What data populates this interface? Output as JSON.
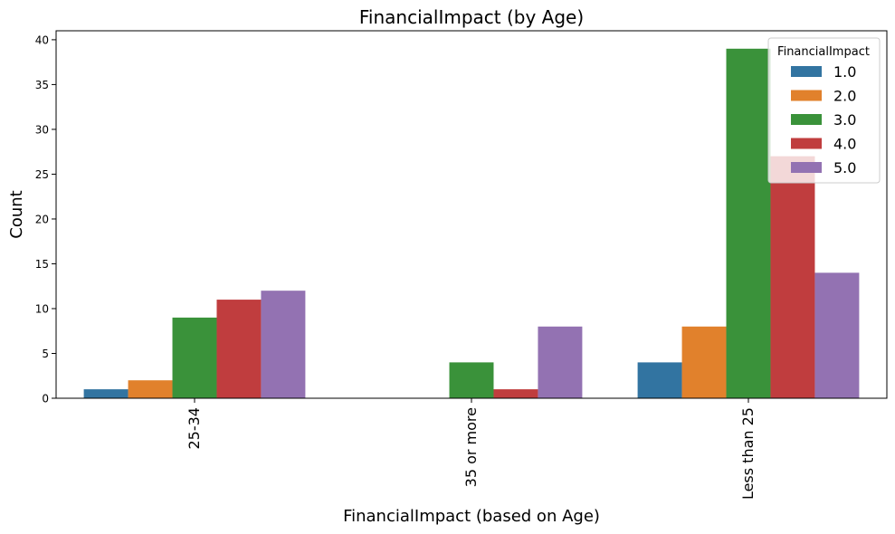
{
  "chart_data": {
    "type": "bar",
    "title": "FinancialImpact (by Age)",
    "xlabel": "FinancialImpact (based on Age)",
    "ylabel": "Count",
    "categories": [
      "25-34",
      "35 or more",
      "Less than 25"
    ],
    "ylim": [
      0,
      41
    ],
    "yticks": [
      0,
      5,
      10,
      15,
      20,
      25,
      30,
      35,
      40
    ],
    "grid": false,
    "legend": {
      "title": "FinancialImpact",
      "placement": "top-right"
    },
    "series": [
      {
        "name": "1.0",
        "color": "#3274a1",
        "values": [
          1,
          0,
          4
        ]
      },
      {
        "name": "2.0",
        "color": "#e1812c",
        "values": [
          2,
          0,
          8
        ]
      },
      {
        "name": "3.0",
        "color": "#3a923a",
        "values": [
          9,
          4,
          39
        ]
      },
      {
        "name": "4.0",
        "color": "#c03d3e",
        "values": [
          11,
          1,
          27
        ]
      },
      {
        "name": "5.0",
        "color": "#9372b2",
        "values": [
          12,
          8,
          14
        ]
      }
    ]
  }
}
